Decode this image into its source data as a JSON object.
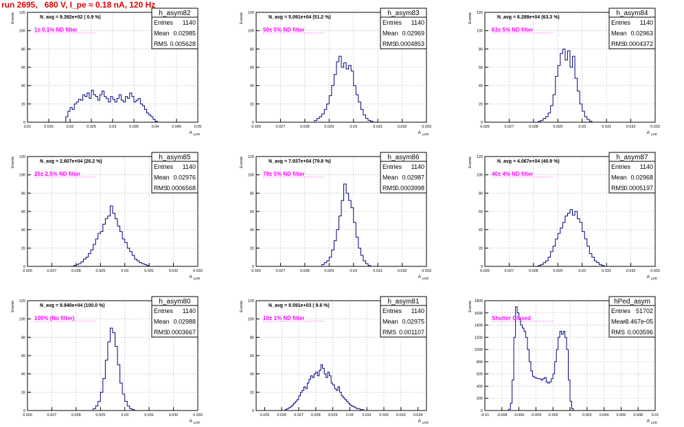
{
  "run_title": "run 2695,   680 V, I_pe ≈ 0.18 nA, 120 Hz",
  "colors": {
    "title": "#e00000",
    "label": "#ff00ff",
    "histogram": "#000080",
    "grid": "#c8c8c8",
    "frame": "#000000"
  },
  "panels": [
    {
      "stats": {
        "name": "h_asym82",
        "entries_label": "Entries",
        "entries": "1140",
        "mean_label": "Mean",
        "mean": "0.02985",
        "rms_label": "RMS",
        "rms": "0.005628"
      },
      "navg": "N_avg = 9.392e+02 ( 0.9 %)",
      "filter": "1± 0.1% ND filter",
      "xlabel": "A",
      "xlabel_sub": "μUD",
      "ylabel": "Events",
      "chart_data": {
        "type": "bar",
        "xlim": [
          0.01,
          0.05
        ],
        "ylim": [
          0,
          120
        ],
        "xticks": [
          "0.01",
          "0.015",
          "0.02",
          "0.025",
          "0.03",
          "0.035",
          "0.04",
          "0.045",
          "0.05"
        ],
        "yticks": [
          "0",
          "20",
          "40",
          "60",
          "80",
          "100",
          "120"
        ],
        "bin_start": 0.019,
        "bin_width": 0.0005,
        "values": [
          6,
          12,
          16,
          14,
          20,
          22,
          25,
          24,
          30,
          28,
          32,
          26,
          35,
          30,
          28,
          24,
          30,
          34,
          28,
          26,
          22,
          28,
          25,
          22,
          26,
          30,
          24,
          22,
          28,
          26,
          32,
          28,
          22,
          24,
          26,
          20,
          18,
          14,
          10,
          8,
          6,
          3,
          1
        ]
      }
    },
    {
      "stats": {
        "name": "h_asym83",
        "entries_label": "Entries",
        "entries": "1140",
        "mean_label": "Mean",
        "mean": "0.02969",
        "rms_label": "RMS",
        "rms": "0.0004853"
      },
      "navg": "N_avg = 5.091e+04 (51.2 %)",
      "filter": "50± 5% ND filter",
      "xlabel": "A",
      "xlabel_sub": "μUD",
      "ylabel": "Events",
      "chart_data": {
        "type": "bar",
        "xlim": [
          0.026,
          0.033
        ],
        "ylim": [
          0,
          120
        ],
        "xticks": [
          "0.026",
          "0.027",
          "0.028",
          "0.029",
          "0.03",
          "0.031",
          "0.032",
          "0.033"
        ],
        "yticks": [
          "0",
          "20",
          "40",
          "60",
          "80",
          "100",
          "120"
        ],
        "bin_start": 0.0284,
        "bin_width": 0.0001,
        "values": [
          2,
          4,
          6,
          9,
          14,
          20,
          29,
          40,
          52,
          66,
          72,
          60,
          65,
          58,
          62,
          56,
          40,
          30,
          22,
          14,
          8,
          4,
          2,
          1
        ]
      }
    },
    {
      "stats": {
        "name": "h_asym84",
        "entries_label": "Entries",
        "entries": "1140",
        "mean_label": "Mean",
        "mean": "0.02963",
        "rms_label": "RMS",
        "rms": "0.0004372"
      },
      "navg": "N_avg = 6.288e+04 (63.3 %)",
      "filter": "63± 5% ND filter",
      "xlabel": "A",
      "xlabel_sub": "μUD",
      "ylabel": "Events",
      "chart_data": {
        "type": "bar",
        "xlim": [
          0.026,
          0.033
        ],
        "ylim": [
          0,
          120
        ],
        "xticks": [
          "0.026",
          "0.027",
          "0.028",
          "0.029",
          "0.03",
          "0.031",
          "0.032",
          "0.033"
        ],
        "yticks": [
          "0",
          "20",
          "40",
          "60",
          "80",
          "100",
          "120"
        ],
        "bin_start": 0.0282,
        "bin_width": 0.0001,
        "values": [
          1,
          2,
          4,
          6,
          10,
          18,
          30,
          50,
          62,
          75,
          80,
          68,
          78,
          60,
          72,
          48,
          34,
          20,
          12,
          6,
          3,
          1
        ]
      }
    },
    {
      "stats": {
        "name": "h_asym85",
        "entries_label": "Entries",
        "entries": "1140",
        "mean_label": "Mean",
        "mean": "0.02976",
        "rms_label": "RMS",
        "rms": "0.0006568"
      },
      "navg": "N_avg = 2.607e+04 (26.2 %)",
      "filter": "25± 2.5% ND filter",
      "xlabel": "A",
      "xlabel_sub": "μUD",
      "ylabel": "Events",
      "chart_data": {
        "type": "bar",
        "xlim": [
          0.026,
          0.033
        ],
        "ylim": [
          0,
          120
        ],
        "xticks": [
          "0.026",
          "0.027",
          "0.028",
          "0.029",
          "0.03",
          "0.031",
          "0.032",
          "0.033"
        ],
        "yticks": [
          "0",
          "20",
          "40",
          "60",
          "80",
          "100",
          "120"
        ],
        "bin_start": 0.0279,
        "bin_width": 0.0001,
        "values": [
          1,
          2,
          3,
          5,
          8,
          10,
          14,
          18,
          24,
          30,
          36,
          38,
          46,
          52,
          55,
          66,
          58,
          52,
          44,
          38,
          30,
          26,
          20,
          16,
          12,
          8,
          6,
          4,
          3,
          2,
          1
        ]
      }
    },
    {
      "stats": {
        "name": "h_asym86",
        "entries_label": "Entries",
        "entries": "1140",
        "mean_label": "Mean",
        "mean": "0.02987",
        "rms_label": "RMS",
        "rms": "0.0003998"
      },
      "navg": "N_avg = 7.937e+04 (79.8 %)",
      "filter": "79± 5% ND filter",
      "xlabel": "A",
      "xlabel_sub": "μUD",
      "ylabel": "Events",
      "chart_data": {
        "type": "bar",
        "xlim": [
          0.026,
          0.033
        ],
        "ylim": [
          0,
          120
        ],
        "xticks": [
          "0.026",
          "0.027",
          "0.028",
          "0.029",
          "0.03",
          "0.031",
          "0.032",
          "0.033"
        ],
        "yticks": [
          "0",
          "20",
          "40",
          "60",
          "80",
          "100",
          "120"
        ],
        "bin_start": 0.0287,
        "bin_width": 0.0001,
        "values": [
          2,
          4,
          6,
          10,
          18,
          28,
          40,
          55,
          72,
          90,
          80,
          72,
          64,
          48,
          32,
          20,
          12,
          6,
          3,
          1
        ]
      }
    },
    {
      "stats": {
        "name": "h_asym87",
        "entries_label": "Entries",
        "entries": "1140",
        "mean_label": "Mean",
        "mean": "0.02968",
        "rms_label": "RMS",
        "rms": "0.0005197"
      },
      "navg": "N_avg = 4.067e+04 (40.9 %)",
      "filter": "40± 4% ND filter",
      "xlabel": "A",
      "xlabel_sub": "μUD",
      "ylabel": "Events",
      "chart_data": {
        "type": "bar",
        "xlim": [
          0.026,
          0.033
        ],
        "ylim": [
          0,
          120
        ],
        "xticks": [
          "0.026",
          "0.027",
          "0.028",
          "0.029",
          "0.03",
          "0.031",
          "0.032",
          "0.033"
        ],
        "yticks": [
          "0",
          "20",
          "40",
          "60",
          "80",
          "100",
          "120"
        ],
        "bin_start": 0.0282,
        "bin_width": 0.0001,
        "values": [
          1,
          2,
          4,
          6,
          10,
          16,
          22,
          30,
          36,
          42,
          48,
          55,
          58,
          62,
          56,
          60,
          52,
          48,
          38,
          30,
          22,
          14,
          10,
          6,
          4,
          2,
          1
        ]
      }
    },
    {
      "stats": {
        "name": "h_asym80",
        "entries_label": "Entries",
        "entries": "1140",
        "mean_label": "Mean",
        "mean": "0.02988",
        "rms_label": "RMS",
        "rms": "0.0003667"
      },
      "navg": "N_avg = 9.940e+04 (100.0 %)",
      "filter": "100% (No filter)",
      "xlabel": "A",
      "xlabel_sub": "μUD",
      "ylabel": "Events",
      "chart_data": {
        "type": "bar",
        "xlim": [
          0.026,
          0.033
        ],
        "ylim": [
          0,
          120
        ],
        "xticks": [
          "0.026",
          "0.027",
          "0.028",
          "0.029",
          "0.03",
          "0.031",
          "0.032",
          "0.033"
        ],
        "yticks": [
          "0",
          "20",
          "40",
          "60",
          "80",
          "100",
          "120"
        ],
        "bin_start": 0.0287,
        "bin_width": 0.0001,
        "values": [
          2,
          5,
          10,
          20,
          35,
          55,
          75,
          90,
          85,
          70,
          50,
          30,
          18,
          10,
          5,
          2,
          1
        ]
      }
    },
    {
      "stats": {
        "name": "h_asym81",
        "entries_label": "Entries",
        "entries": "1140",
        "mean_label": "Mean",
        "mean": "0.02975",
        "rms_label": "RMS",
        "rms": "0.001107"
      },
      "navg": "N_avg = 9.591e+03 ( 9.6 %)",
      "filter": "10± 1% ND filter",
      "xlabel": "A",
      "xlabel_sub": "μUD",
      "ylabel": "Events",
      "chart_data": {
        "type": "bar",
        "xlim": [
          0.0245,
          0.0345
        ],
        "ylim": [
          0,
          120
        ],
        "xticks": [
          "0.025",
          "0.026",
          "0.027",
          "0.028",
          "0.029",
          "0.03",
          "0.031",
          "0.032",
          "0.033",
          "0.034"
        ],
        "yticks": [
          "0",
          "20",
          "40",
          "60",
          "80",
          "100",
          "120"
        ],
        "bin_start": 0.0262,
        "bin_width": 0.0001,
        "values": [
          1,
          2,
          3,
          4,
          6,
          8,
          10,
          12,
          16,
          20,
          22,
          26,
          24,
          30,
          34,
          38,
          36,
          40,
          42,
          38,
          44,
          50,
          46,
          40,
          36,
          42,
          38,
          30,
          28,
          24,
          22,
          26,
          20,
          16,
          14,
          12,
          10,
          8,
          6,
          5,
          4,
          3,
          2,
          2,
          1,
          1
        ]
      }
    },
    {
      "stats": {
        "name": "hPed_asym",
        "entries_label": "Entries",
        "entries": "51702",
        "mean_label": "Mean",
        "mean": "-3.467e-05",
        "rms_label": "RMS",
        "rms": "0.003596"
      },
      "navg": "",
      "filter": "Shutter Closed",
      "xlabel": "A",
      "xlabel_sub": "μUD",
      "ylabel": "Events",
      "chart_data": {
        "type": "bar",
        "xlim": [
          -0.01,
          0.01
        ],
        "ylim": [
          0,
          1800
        ],
        "xticks": [
          "-0.01",
          "-0.008",
          "-0.006",
          "-0.004",
          "-0.002",
          "0",
          "0.002",
          "0.004",
          "0.006",
          "0.008",
          "0.01"
        ],
        "yticks": [
          "0",
          "200",
          "400",
          "600",
          "800",
          "1000",
          "1200",
          "1400",
          "1600",
          "1800"
        ],
        "bin_start": -0.0072,
        "bin_width": 0.0002,
        "values": [
          20,
          120,
          500,
          1200,
          1700,
          1600,
          1500,
          1400,
          1350,
          1300,
          1200,
          1000,
          800,
          650,
          560,
          540,
          530,
          520,
          520,
          500,
          520,
          540,
          470,
          450,
          470,
          520,
          600,
          800,
          1000,
          1200,
          1300,
          1250,
          1300,
          1200,
          1000,
          500,
          150,
          30
        ]
      }
    }
  ]
}
